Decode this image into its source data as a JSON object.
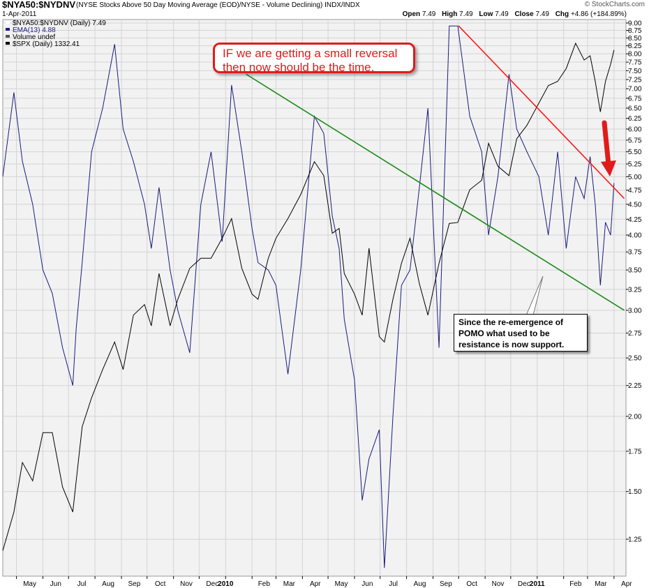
{
  "header": {
    "symbol": "$NYA50:$NYDNV",
    "description": "(NYSE Stocks Above 50 Day Moving Average (EOD)/NYSE - Volume Declining)  INDX/INDX",
    "watermark": "© StockCharts.com",
    "date": "1-Apr-2011",
    "ohlc": {
      "open_label": "Open",
      "open": "7.49",
      "high_label": "High",
      "high": "7.49",
      "low_label": "Low",
      "low": "7.49",
      "close_label": "Close",
      "close": "7.49",
      "chg_label": "Chg",
      "chg": "+4.86 (+184.89%)"
    }
  },
  "legend": [
    {
      "text": "$NYA50:$NYDNV (Daily) 7.49",
      "color": "#ffffff"
    },
    {
      "text": "EMA(13) 4.88",
      "color": "#1a1a80"
    },
    {
      "text": "Volume undef",
      "color": "#555555"
    },
    {
      "text": "$SPX (Daily) 1332.41",
      "color": "#000000"
    }
  ],
  "annotations": {
    "red_callout": "IF we are getting a small reversal\nthen now should be the time.",
    "black_callout": "Since the re-emergence of\nPOMO what used to be\nresistance is now support."
  },
  "colors": {
    "ratio_line": "#1a1a80",
    "spx_line": "#000000",
    "resistance_line": "#ff1a1a",
    "support_line": "#1a8a1a",
    "arrow": "#e01b1b",
    "plot_bg": "#f2f2f2",
    "grid": "#d4d4d4"
  },
  "chart_data": {
    "type": "line",
    "y_axis": {
      "scale": "log",
      "side": "right",
      "ticks": [
        "9.00",
        "8.75",
        "8.50",
        "8.25",
        "8.00",
        "7.75",
        "7.50",
        "7.25",
        "7.00",
        "6.75",
        "6.50",
        "6.25",
        "6.00",
        "5.75",
        "5.50",
        "5.25",
        "5.00",
        "4.75",
        "4.50",
        "4.25",
        "4.00",
        "3.75",
        "3.50",
        "3.25",
        "3.00",
        "2.75",
        "2.50",
        "2.25",
        "2.00",
        "1.75",
        "1.50",
        "1.25"
      ],
      "range": [
        1.1,
        9.0
      ]
    },
    "x_axis": {
      "ticks": [
        "May",
        "Jun",
        "Jul",
        "Aug",
        "Sep",
        "Oct",
        "Nov",
        "Dec",
        "2010",
        "Feb",
        "Mar",
        "Apr",
        "May",
        "Jun",
        "Jul",
        "Aug",
        "Sep",
        "Oct",
        "Nov",
        "Dec",
        "2011",
        "Feb",
        "Mar",
        "Apr"
      ],
      "bold_ticks": [
        "2010",
        "2011"
      ],
      "range": [
        "2009-04-15",
        "2011-04-15"
      ]
    },
    "grid": true,
    "legend": "top-left",
    "series": [
      {
        "name": "EMA(13)",
        "role": "ratio",
        "x": [
          "2009-04-15",
          "2009-04-28",
          "2009-05-08",
          "2009-05-20",
          "2009-06-01",
          "2009-06-12",
          "2009-06-24",
          "2009-07-06",
          "2009-07-10",
          "2009-07-17",
          "2009-07-28",
          "2009-08-10",
          "2009-08-24",
          "2009-09-03",
          "2009-09-15",
          "2009-09-28",
          "2009-10-06",
          "2009-10-15",
          "2009-10-28",
          "2009-11-06",
          "2009-11-20",
          "2009-12-03",
          "2009-12-15",
          "2009-12-28",
          "2010-01-08",
          "2010-01-20",
          "2010-02-01",
          "2010-02-08",
          "2010-02-20",
          "2010-03-01",
          "2010-03-15",
          "2010-03-30",
          "2010-04-15",
          "2010-04-26",
          "2010-05-06",
          "2010-05-14",
          "2010-05-20",
          "2010-06-01",
          "2010-06-10",
          "2010-06-18",
          "2010-06-30",
          "2010-07-06",
          "2010-07-16",
          "2010-07-26",
          "2010-08-05",
          "2010-08-16",
          "2010-08-26",
          "2010-09-08",
          "2010-09-20",
          "2010-09-30",
          "2010-10-14",
          "2010-10-28",
          "2010-11-05",
          "2010-11-16",
          "2010-11-29",
          "2010-12-08",
          "2010-12-20",
          "2011-01-03",
          "2011-01-14",
          "2011-01-25",
          "2011-02-04",
          "2011-02-15",
          "2011-02-25",
          "2011-03-04",
          "2011-03-10",
          "2011-03-16",
          "2011-03-22",
          "2011-03-28",
          "2011-04-01"
        ],
        "y": [
          5.0,
          6.9,
          5.3,
          4.5,
          3.5,
          3.2,
          2.6,
          2.25,
          2.8,
          3.6,
          5.5,
          6.5,
          8.3,
          6.0,
          5.3,
          4.5,
          3.8,
          4.8,
          3.5,
          3.0,
          2.55,
          4.5,
          5.5,
          3.9,
          7.1,
          5.5,
          4.1,
          3.6,
          3.5,
          3.3,
          2.35,
          3.5,
          6.3,
          5.9,
          4.3,
          3.8,
          2.9,
          2.3,
          1.45,
          1.7,
          1.9,
          1.12,
          2.0,
          3.3,
          3.5,
          4.8,
          6.5,
          2.6,
          8.9,
          8.9,
          6.3,
          5.5,
          4.0,
          5.0,
          7.4,
          6.0,
          5.5,
          5.0,
          4.0,
          5.5,
          3.8,
          5.0,
          4.6,
          5.4,
          4.5,
          3.3,
          4.2,
          4.0,
          4.88
        ]
      },
      {
        "name": "$SPX (Daily)",
        "role": "index",
        "x": [
          "2009-04-15",
          "2009-04-28",
          "2009-05-08",
          "2009-05-20",
          "2009-06-01",
          "2009-06-12",
          "2009-06-24",
          "2009-07-06",
          "2009-07-10",
          "2009-07-17",
          "2009-07-28",
          "2009-08-10",
          "2009-08-24",
          "2009-09-03",
          "2009-09-15",
          "2009-09-28",
          "2009-10-06",
          "2009-10-15",
          "2009-10-28",
          "2009-11-06",
          "2009-11-20",
          "2009-12-03",
          "2009-12-15",
          "2009-12-28",
          "2010-01-08",
          "2010-01-20",
          "2010-02-01",
          "2010-02-08",
          "2010-02-20",
          "2010-03-01",
          "2010-03-15",
          "2010-03-30",
          "2010-04-15",
          "2010-04-26",
          "2010-05-06",
          "2010-05-14",
          "2010-05-20",
          "2010-06-01",
          "2010-06-10",
          "2010-06-18",
          "2010-06-30",
          "2010-07-06",
          "2010-07-16",
          "2010-07-26",
          "2010-08-05",
          "2010-08-16",
          "2010-08-26",
          "2010-09-08",
          "2010-09-20",
          "2010-09-30",
          "2010-10-14",
          "2010-10-28",
          "2010-11-05",
          "2010-11-16",
          "2010-11-29",
          "2010-12-08",
          "2010-12-20",
          "2011-01-03",
          "2011-01-14",
          "2011-01-25",
          "2011-02-04",
          "2011-02-15",
          "2011-02-25",
          "2011-03-04",
          "2011-03-10",
          "2011-03-16",
          "2011-03-22",
          "2011-03-28",
          "2011-04-01"
        ],
        "y": [
          850,
          880,
          920,
          905,
          945,
          945,
          900,
          880,
          905,
          950,
          975,
          1000,
          1025,
          1000,
          1050,
          1060,
          1040,
          1090,
          1040,
          1065,
          1095,
          1105,
          1105,
          1125,
          1145,
          1095,
          1070,
          1065,
          1105,
          1125,
          1145,
          1170,
          1205,
          1190,
          1130,
          1135,
          1090,
          1070,
          1050,
          1115,
          1030,
          1025,
          1065,
          1100,
          1125,
          1080,
          1050,
          1100,
          1140,
          1141,
          1175,
          1185,
          1225,
          1200,
          1190,
          1230,
          1245,
          1270,
          1290,
          1295,
          1310,
          1340,
          1320,
          1325,
          1295,
          1260,
          1295,
          1315,
          1332
        ]
      }
    ],
    "trendlines": [
      {
        "name": "resistance",
        "from": [
          "2010-10-01",
          8.9
        ],
        "to": [
          "2011-04-13",
          4.6
        ]
      },
      {
        "name": "support",
        "from": [
          "2010-01-25",
          7.4
        ],
        "to": [
          "2011-04-13",
          3.0
        ]
      }
    ]
  }
}
